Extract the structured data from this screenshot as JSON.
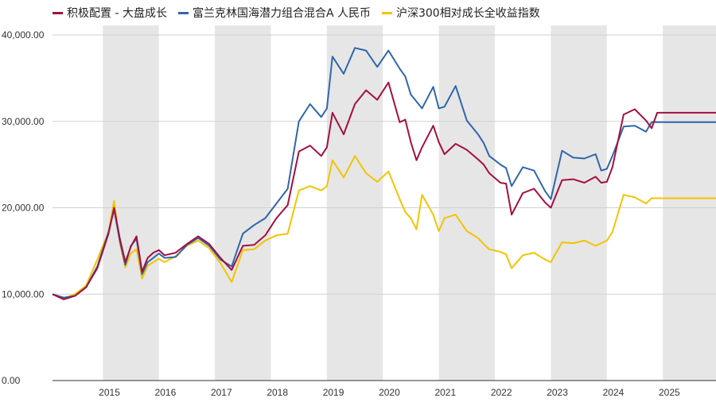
{
  "chart_data": {
    "type": "line",
    "title": "",
    "xlabel": "",
    "ylabel": "",
    "ylim": [
      0,
      40000
    ],
    "y_ticks": [
      "0.00",
      "10,000.00",
      "20,000.00",
      "30,000.00",
      "40,000.00"
    ],
    "y_tick_values": [
      0,
      10000,
      20000,
      30000,
      40000
    ],
    "x_ticks": [
      "2015",
      "2016",
      "2017",
      "2018",
      "2019",
      "2020",
      "2021",
      "2022",
      "2023",
      "2024",
      "2025"
    ],
    "x_range": [
      2014.1,
      2025.95
    ],
    "shaded_years": [
      2015,
      2017,
      2019,
      2021,
      2023,
      2025
    ],
    "grid": "horizontal",
    "legend_placement": "top-left",
    "x": [
      2014.1,
      2014.3,
      2014.5,
      2014.7,
      2014.9,
      2015.1,
      2015.2,
      2015.3,
      2015.4,
      2015.5,
      2015.6,
      2015.7,
      2015.8,
      2015.9,
      2016.0,
      2016.1,
      2016.3,
      2016.5,
      2016.7,
      2016.9,
      2017.1,
      2017.3,
      2017.5,
      2017.7,
      2017.9,
      2018.1,
      2018.3,
      2018.5,
      2018.7,
      2018.9,
      2019.0,
      2019.1,
      2019.3,
      2019.5,
      2019.7,
      2019.9,
      2020.1,
      2020.3,
      2020.4,
      2020.5,
      2020.6,
      2020.7,
      2020.9,
      2021.0,
      2021.1,
      2021.3,
      2021.5,
      2021.7,
      2021.8,
      2021.9,
      2022.1,
      2022.2,
      2022.3,
      2022.5,
      2022.7,
      2022.9,
      2023.0,
      2023.2,
      2023.4,
      2023.6,
      2023.8,
      2023.9,
      2024.0,
      2024.1,
      2024.3,
      2024.5,
      2024.7,
      2024.8,
      2024.9,
      2025.1,
      2025.3,
      2025.5,
      2025.6,
      2025.7,
      2025.8,
      2025.9,
      2025.95
    ],
    "series": [
      {
        "name": "积极配置 - 大盘成长",
        "color": "#a31040",
        "values": [
          10000,
          9400,
          9800,
          10800,
          13000,
          17000,
          20000,
          16500,
          13700,
          15500,
          16700,
          12600,
          14200,
          14800,
          15100,
          14500,
          14800,
          15800,
          16700,
          15800,
          14200,
          12800,
          15600,
          15700,
          16800,
          18800,
          20300,
          26500,
          27200,
          26000,
          27000,
          31000,
          28500,
          32000,
          33600,
          32500,
          34500,
          29900,
          30200,
          27600,
          25500,
          27000,
          29500,
          27600,
          26200,
          27400,
          26700,
          25600,
          25000,
          24000,
          22900,
          22800,
          19200,
          21700,
          22200,
          20600,
          20000,
          23200,
          23300,
          22900,
          23600,
          22900,
          23000,
          24700,
          30800,
          31400,
          30100,
          29200,
          31000,
          31000,
          31000,
          31000,
          31000,
          31000,
          31000,
          31000,
          31000
        ]
      },
      {
        "name": "富兰克林国海潜力组合混合A 人民币",
        "color": "#2f66ad",
        "values": [
          10000,
          9600,
          9800,
          10800,
          13200,
          17200,
          19800,
          16200,
          13400,
          15600,
          16400,
          12300,
          13700,
          14200,
          14700,
          14200,
          14300,
          15700,
          16500,
          15600,
          14000,
          13200,
          17000,
          18000,
          18800,
          20500,
          22200,
          30000,
          32000,
          30500,
          31500,
          37500,
          35500,
          38500,
          38200,
          36300,
          38200,
          36100,
          35200,
          33100,
          32300,
          31500,
          34000,
          31500,
          31700,
          34100,
          30100,
          28500,
          27500,
          26000,
          25000,
          24600,
          22500,
          24700,
          24300,
          21900,
          21000,
          26600,
          25800,
          25700,
          26200,
          24300,
          24500,
          26000,
          29400,
          29500,
          28800,
          29900,
          29900,
          29900,
          29900,
          29900,
          29900,
          29900,
          29900,
          29900,
          29900
        ]
      },
      {
        "name": "沪深300相对成长全收益指数",
        "color": "#f2c400",
        "values": [
          10000,
          9500,
          10000,
          11000,
          14000,
          17200,
          20800,
          16000,
          13100,
          14700,
          15200,
          11800,
          13300,
          13700,
          14100,
          13700,
          14400,
          15600,
          16200,
          15300,
          13600,
          11400,
          15100,
          15200,
          16200,
          16800,
          17000,
          22000,
          22500,
          22000,
          22500,
          25500,
          23500,
          26000,
          24000,
          23000,
          24200,
          21000,
          19500,
          18800,
          17500,
          21500,
          19200,
          17300,
          18800,
          19200,
          17300,
          16500,
          15800,
          15200,
          14900,
          14600,
          13000,
          14500,
          14800,
          14000,
          13700,
          16000,
          15900,
          16200,
          15600,
          15900,
          16200,
          17200,
          21500,
          21200,
          20500,
          21100,
          21100,
          21100,
          21100,
          21100,
          21100,
          21100,
          21100,
          21100,
          21100
        ]
      }
    ]
  }
}
